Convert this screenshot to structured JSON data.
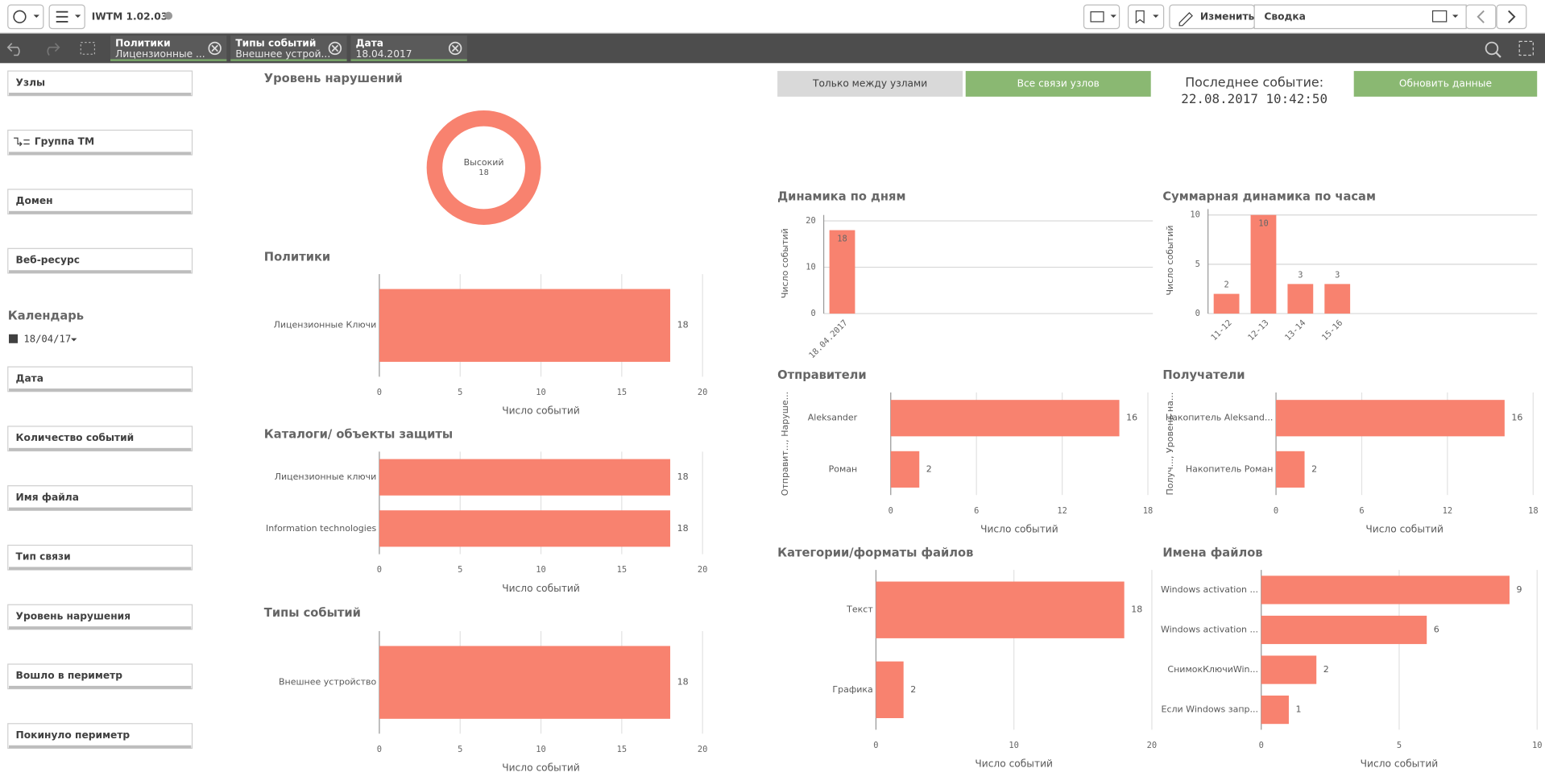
{
  "toolbar": {
    "app_title": "IWTM 1.02.03",
    "edit": "Изменить",
    "sheet": "Сводка"
  },
  "selections": [
    {
      "field": "Политики",
      "value": "Лицензионные ..."
    },
    {
      "field": "Типы событий",
      "value": "Внешнее устрой..."
    },
    {
      "field": "Дата",
      "value": "18.04.2017"
    }
  ],
  "sidebar": {
    "filters_top": [
      "Узлы",
      "Группа ТМ",
      "Домен",
      "Веб-ресурс"
    ],
    "calendar": {
      "title": "Календарь",
      "value": "18/04/17"
    },
    "filters_bottom": [
      "Дата",
      "Количество событий",
      "Имя файла",
      "Тип связи",
      "Уровень нарушения",
      "Вошло в периметр",
      "Покинуло периметр"
    ]
  },
  "buttons": {
    "between_nodes": "Только между узлами",
    "all_links": "Все связи узлов",
    "refresh": "Обновить данные"
  },
  "last_event": {
    "label": "Последнее событие:",
    "value": "22.08.2017 10:42:50"
  },
  "chart_data": [
    {
      "type": "pie",
      "title": "Уровень нарушений",
      "categories": [
        "Высокий"
      ],
      "values": [
        18
      ],
      "color": "#f8826f"
    },
    {
      "type": "bar",
      "title": "Политики",
      "categories": [
        "Лицензионные Ключи"
      ],
      "values": [
        18
      ],
      "color": "#f8826f",
      "xlim": [
        0,
        20
      ],
      "xticks": [
        0,
        5,
        10,
        15,
        20
      ],
      "x_label": "Число событий",
      "grid": true
    },
    {
      "type": "bar",
      "title": "Каталоги/ объекты защиты",
      "categories": [
        "Лицензионные ключи",
        "Information technologies"
      ],
      "values": [
        18,
        18
      ],
      "color": "#f8826f",
      "xlim": [
        0,
        20
      ],
      "xticks": [
        0,
        5,
        10,
        15,
        20
      ],
      "x_label": "Число событий",
      "grid": true
    },
    {
      "type": "bar",
      "title": "Типы событий",
      "categories": [
        "Внешнее устройство"
      ],
      "values": [
        18
      ],
      "color": "#f8826f",
      "xlim": [
        0,
        20
      ],
      "xticks": [
        0,
        5,
        10,
        15,
        20
      ],
      "x_label": "Число событий",
      "grid": true
    },
    {
      "type": "column",
      "title": "Динамика по дням",
      "categories": [
        "18.04.2017"
      ],
      "values": [
        18
      ],
      "color": "#f8826f",
      "ylim": [
        0,
        20
      ],
      "yticks": [
        0,
        10,
        20
      ],
      "y_label": "Число событий",
      "grid": true
    },
    {
      "type": "column",
      "title": "Суммарная динамика по часам",
      "categories": [
        "11-12",
        "12-13",
        "13-14",
        "15-16"
      ],
      "values": [
        2,
        10,
        3,
        3
      ],
      "color": "#f8826f",
      "ylim": [
        0,
        10
      ],
      "yticks": [
        0,
        5,
        10
      ],
      "y_label": "Число событий",
      "grid": true
    },
    {
      "type": "bar",
      "title": "Отправители",
      "categories": [
        "Aleksander",
        "Роман"
      ],
      "values": [
        16,
        2
      ],
      "color": "#f8826f",
      "xlim": [
        0,
        18
      ],
      "xticks": [
        0,
        6,
        12,
        18
      ],
      "x_label": "Число событий",
      "y_label": "Отправит..., Наруше...",
      "grid": true
    },
    {
      "type": "bar",
      "title": "Получатели",
      "categories": [
        "Накопитель Aleksand...",
        "Накопитель Роман"
      ],
      "values": [
        16,
        2
      ],
      "color": "#f8826f",
      "xlim": [
        0,
        18
      ],
      "xticks": [
        0,
        6,
        12,
        18
      ],
      "x_label": "Число событий",
      "y_label": "Получ..., Уровень на...",
      "grid": true
    },
    {
      "type": "bar",
      "title": "Категории/форматы файлов",
      "categories": [
        "Текст",
        "Графика"
      ],
      "values": [
        18,
        2
      ],
      "color": "#f8826f",
      "xlim": [
        0,
        20
      ],
      "xticks": [
        0,
        10,
        20
      ],
      "x_label": "Число событий",
      "grid": true
    },
    {
      "type": "bar",
      "title": "Имена файлов",
      "categories": [
        "Windows activation ...",
        "Windows activation ...",
        "СнимокКлючиWin...",
        "Если Windows запр..."
      ],
      "values": [
        9,
        6,
        2,
        1
      ],
      "color": "#f8826f",
      "xlim": [
        0,
        10
      ],
      "xticks": [
        0,
        5,
        10
      ],
      "x_label": "Число событий",
      "grid": true
    }
  ]
}
